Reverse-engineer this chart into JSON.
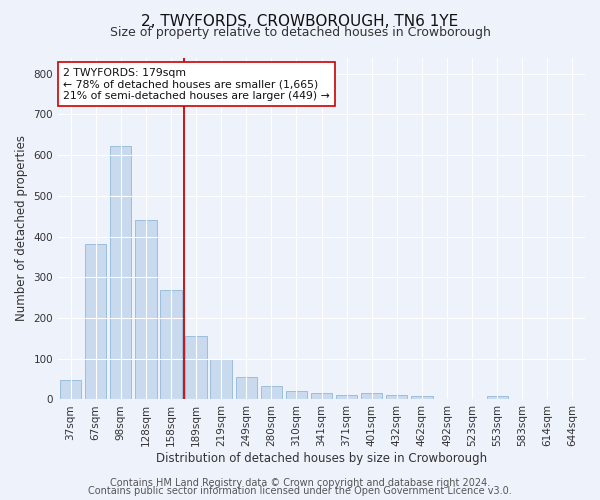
{
  "title": "2, TWYFORDS, CROWBOROUGH, TN6 1YE",
  "subtitle": "Size of property relative to detached houses in Crowborough",
  "xlabel": "Distribution of detached houses by size in Crowborough",
  "ylabel": "Number of detached properties",
  "categories": [
    "37sqm",
    "67sqm",
    "98sqm",
    "128sqm",
    "158sqm",
    "189sqm",
    "219sqm",
    "249sqm",
    "280sqm",
    "310sqm",
    "341sqm",
    "371sqm",
    "401sqm",
    "432sqm",
    "462sqm",
    "492sqm",
    "523sqm",
    "553sqm",
    "583sqm",
    "614sqm",
    "644sqm"
  ],
  "values": [
    47,
    381,
    623,
    440,
    268,
    155,
    99,
    55,
    32,
    22,
    17,
    12,
    15,
    12,
    8,
    0,
    0,
    8,
    0,
    0,
    0
  ],
  "bar_color": "#c9d9ee",
  "bar_edge_color": "#8fb8d8",
  "vline_index": 4.5,
  "vline_color": "#cc0000",
  "annotation_text": "2 TWYFORDS: 179sqm\n← 78% of detached houses are smaller (1,665)\n21% of semi-detached houses are larger (449) →",
  "annotation_box_color": "#ffffff",
  "annotation_box_edge": "#cc0000",
  "ylim": [
    0,
    840
  ],
  "yticks": [
    0,
    100,
    200,
    300,
    400,
    500,
    600,
    700,
    800
  ],
  "footer_line1": "Contains HM Land Registry data © Crown copyright and database right 2024.",
  "footer_line2": "Contains public sector information licensed under the Open Government Licence v3.0.",
  "bg_color": "#eef2fb",
  "title_fontsize": 11,
  "subtitle_fontsize": 9,
  "xlabel_fontsize": 8.5,
  "ylabel_fontsize": 8.5,
  "tick_fontsize": 7.5,
  "footer_fontsize": 7,
  "annotation_fontsize": 7.8
}
